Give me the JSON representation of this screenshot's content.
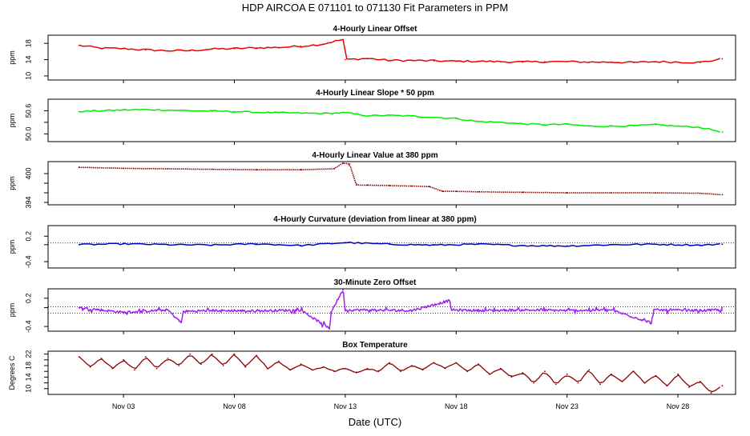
{
  "main_title": "HDP   AIRCOA E   071101 to 071130   Fit Parameters in PPM",
  "x_axis": {
    "label": "Date (UTC)",
    "range_days": [
      -1.4,
      29.6
    ],
    "ticks": [
      {
        "day": 2,
        "label": "Nov 03"
      },
      {
        "day": 7,
        "label": "Nov 08"
      },
      {
        "day": 12,
        "label": "Nov 13"
      },
      {
        "day": 17,
        "label": "Nov 18"
      },
      {
        "day": 22,
        "label": "Nov 23"
      },
      {
        "day": 27,
        "label": "Nov 28"
      }
    ]
  },
  "colors": {
    "red": "#ee0000",
    "green": "#00ee00",
    "darkred": "#8b0000",
    "blue": "#0000cc",
    "purple": "#a020f0"
  },
  "chart_data": [
    {
      "type": "line",
      "title": "4-Hourly Linear Offset",
      "ylabel": "ppm",
      "ylim": [
        9,
        20
      ],
      "yticks": [
        10,
        14,
        18
      ],
      "series": [
        {
          "name": "offset",
          "color": "red",
          "style": "line",
          "x": [
            0,
            1,
            2,
            3,
            4,
            5,
            6,
            7,
            8,
            9,
            10,
            11,
            11.5,
            11.9,
            12,
            13,
            14,
            15,
            16,
            17,
            18,
            19,
            20,
            21,
            22,
            23,
            24,
            25,
            26,
            27,
            28,
            29
          ],
          "values": [
            17.5,
            16.8,
            16.7,
            16.4,
            16.2,
            16.2,
            16.6,
            16.7,
            16.9,
            17.0,
            17.3,
            17.8,
            18.5,
            18.9,
            14.0,
            14.3,
            13.8,
            13.8,
            13.7,
            13.6,
            13.6,
            13.5,
            13.4,
            13.5,
            13.5,
            13.4,
            13.4,
            13.3,
            13.5,
            13.4,
            13.3,
            14.2
          ]
        }
      ]
    },
    {
      "type": "line",
      "title": "4-Hourly Linear Slope * 50 ppm",
      "ylabel": "ppm",
      "ylim": [
        49.8,
        50.9
      ],
      "yticks": [
        50.0,
        50.3,
        50.6
      ],
      "ytick_labels": [
        "50.0",
        "",
        "50.6"
      ],
      "series": [
        {
          "name": "slope",
          "color": "green",
          "style": "line",
          "x": [
            0,
            1,
            2,
            3,
            4,
            5,
            6,
            7,
            8,
            9,
            10,
            11,
            12,
            13,
            14,
            15,
            16,
            17,
            18,
            19,
            20,
            21,
            22,
            23,
            24,
            25,
            26,
            27,
            28,
            29
          ],
          "values": [
            50.58,
            50.6,
            50.62,
            50.63,
            50.62,
            50.6,
            50.59,
            50.58,
            50.56,
            50.55,
            50.54,
            50.53,
            50.55,
            50.47,
            50.48,
            50.46,
            50.43,
            50.4,
            50.32,
            50.3,
            50.26,
            50.24,
            50.25,
            50.2,
            50.2,
            50.21,
            50.24,
            50.2,
            50.17,
            50.05
          ]
        }
      ]
    },
    {
      "type": "scatter",
      "title": "4-Hourly Linear Value at 380 ppm",
      "ylabel": "ppm",
      "ylim": [
        393.5,
        402.5
      ],
      "yticks": [
        394,
        396,
        398,
        400
      ],
      "ytick_labels": [
        "394",
        "",
        "",
        "400"
      ],
      "series": [
        {
          "name": "value_380",
          "color": "darkred",
          "style": "dots",
          "x": [
            0,
            2,
            4,
            6,
            8,
            10,
            11.5,
            11.9,
            12.2,
            12.5,
            13,
            14,
            15,
            15.8,
            16.4,
            17,
            18,
            20,
            22,
            24,
            26,
            28,
            29
          ],
          "values": [
            401.3,
            401.1,
            401.0,
            400.9,
            400.8,
            400.8,
            401.0,
            402.2,
            402.0,
            397.6,
            397.6,
            397.5,
            397.4,
            397.3,
            396.3,
            396.3,
            396.2,
            396.1,
            396.0,
            396.0,
            396.0,
            395.9,
            395.6
          ]
        }
      ]
    },
    {
      "type": "line",
      "title": "4-Hourly Curvature (deviation from linear at 380 ppm)",
      "ylabel": "ppm",
      "ylim": [
        -0.55,
        0.45
      ],
      "yticks": [
        -0.4,
        0.0,
        0.2
      ],
      "ytick_labels": [
        "-0.4",
        "",
        "0.2"
      ],
      "reference_line": 0.04,
      "series": [
        {
          "name": "curvature",
          "color": "blue",
          "style": "line",
          "x": [
            0,
            2,
            4,
            6,
            8,
            10,
            12,
            14,
            16,
            18,
            20,
            22,
            24,
            26,
            28,
            29
          ],
          "values": [
            0.0,
            0.02,
            0.0,
            -0.01,
            0.02,
            -0.02,
            0.05,
            0.01,
            -0.01,
            0.01,
            -0.02,
            -0.03,
            0.0,
            0.01,
            -0.01,
            0.01
          ]
        }
      ]
    },
    {
      "type": "line",
      "title": "30-Minute Zero Offset",
      "ylabel": "ppm",
      "ylim": [
        -0.5,
        0.4
      ],
      "yticks": [
        -0.4,
        0.0,
        0.2
      ],
      "ytick_labels": [
        "-0.4",
        "",
        "0.2"
      ],
      "reference_lines": [
        0.02,
        -0.12
      ],
      "series": [
        {
          "name": "zero_offset",
          "color": "purple",
          "style": "line",
          "x": [
            0,
            2,
            4,
            4.6,
            4.7,
            6,
            8,
            10,
            11.3,
            11.35,
            11.9,
            12.0,
            13,
            15,
            16.7,
            16.8,
            18,
            20,
            22,
            24,
            25.8,
            25.9,
            28,
            29
          ],
          "values": [
            0.0,
            -0.1,
            -0.05,
            -0.32,
            -0.08,
            -0.06,
            -0.07,
            -0.05,
            -0.45,
            -0.1,
            0.38,
            -0.05,
            -0.05,
            -0.06,
            0.15,
            -0.05,
            -0.06,
            -0.05,
            -0.06,
            -0.05,
            -0.32,
            -0.05,
            -0.06,
            -0.05
          ]
        }
      ]
    },
    {
      "type": "line",
      "title": "Box Temperature",
      "ylabel": "Degrees C",
      "ylim": [
        8,
        23
      ],
      "yticks": [
        10,
        12,
        14,
        16,
        18,
        20,
        22
      ],
      "ytick_labels": [
        "10",
        "",
        "14",
        "",
        "18",
        "",
        "22"
      ],
      "series": [
        {
          "name": "temperature",
          "color": "darkred",
          "style": "dots-line",
          "x": [
            0,
            0.5,
            1,
            1.5,
            2,
            2.5,
            3,
            3.5,
            4,
            4.5,
            5,
            5.5,
            6,
            6.5,
            7,
            7.5,
            8,
            8.5,
            9,
            9.5,
            10,
            10.5,
            11,
            11.5,
            12,
            12.5,
            13,
            13.5,
            14,
            14.5,
            15,
            15.5,
            16,
            16.5,
            17,
            17.5,
            18,
            18.5,
            19,
            19.5,
            20,
            20.5,
            21,
            21.5,
            22,
            22.5,
            23,
            23.5,
            24,
            24.5,
            25,
            25.5,
            26,
            26.5,
            27,
            27.5,
            28,
            28.5,
            29
          ],
          "values": [
            21,
            17.5,
            20.5,
            17,
            20,
            16.5,
            21,
            17,
            20.5,
            18,
            22,
            18.5,
            22,
            18,
            22,
            17.5,
            21.5,
            17,
            19.5,
            16.5,
            18.5,
            16.5,
            17.5,
            16,
            17,
            15.5,
            17,
            16,
            19,
            16,
            18,
            16.5,
            19,
            17,
            19,
            16,
            18.5,
            15,
            17,
            14,
            15.5,
            12,
            16,
            11.5,
            15,
            12,
            16.5,
            11.5,
            15,
            12.5,
            16,
            12,
            14.5,
            11,
            15,
            10.5,
            12.5,
            8.5,
            11
          ]
        }
      ]
    }
  ]
}
